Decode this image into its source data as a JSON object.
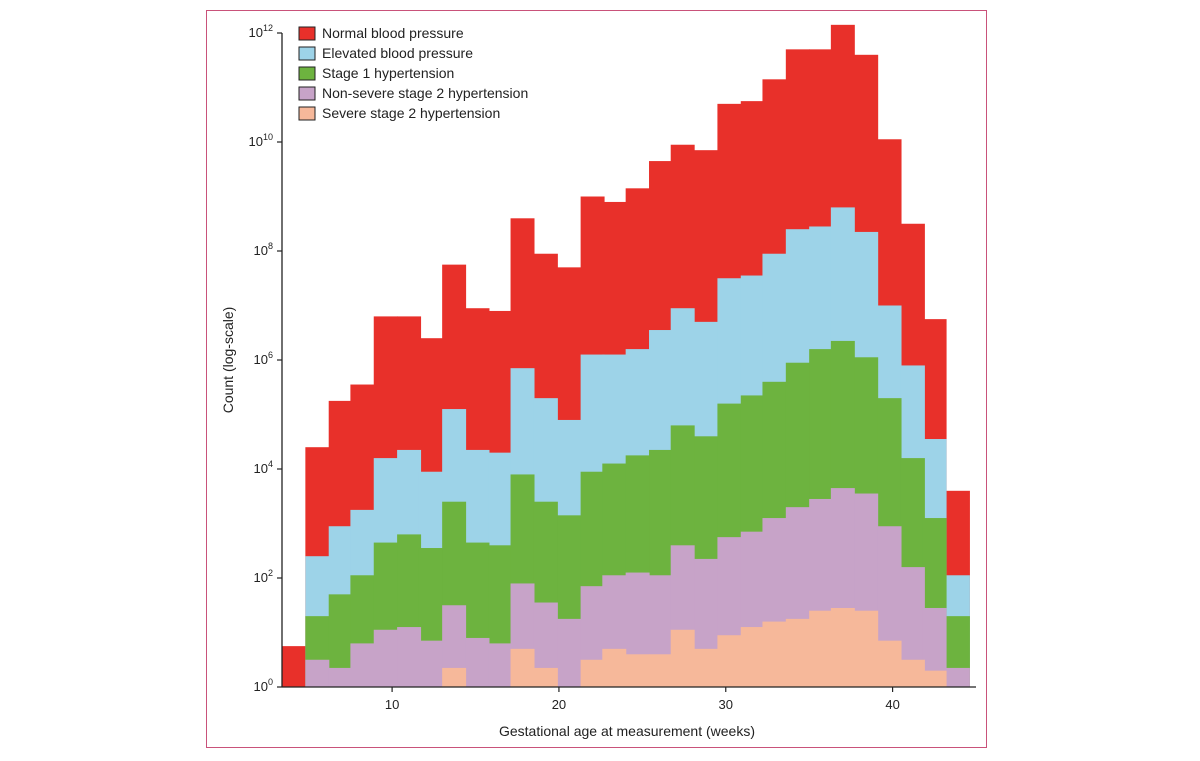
{
  "chart_data": {
    "type": "bar",
    "stacking": "overlaid-histogram",
    "xlabel": "Gestational age at measurement (weeks)",
    "ylabel": "Count (log-scale)",
    "y_scale": "log10",
    "ylim_exponent": [
      0,
      12
    ],
    "xlim": [
      3.4,
      45
    ],
    "x_ticks": [
      10,
      20,
      30,
      40
    ],
    "y_ticks": [
      {
        "base": "10",
        "exp": "0",
        "value": 0
      },
      {
        "base": "10",
        "exp": "2",
        "value": 2
      },
      {
        "base": "10",
        "exp": "4",
        "value": 4
      },
      {
        "base": "10",
        "exp": "6",
        "value": 6
      },
      {
        "base": "10",
        "exp": "8",
        "value": 8
      },
      {
        "base": "10",
        "exp": "10",
        "value": 10
      },
      {
        "base": "10",
        "exp": "12",
        "value": 12
      }
    ],
    "bin_start_weeks": [
      3.4,
      4.8,
      6.2,
      7.5,
      8.9,
      10.3,
      11.6,
      13.0,
      14.4,
      15.8,
      17.1,
      18.5,
      19.9,
      21.3,
      22.6,
      24.0,
      25.4,
      26.7,
      28.1,
      29.5,
      30.9,
      32.2,
      33.6,
      35.0,
      36.3,
      37.7,
      39.1,
      40.5,
      41.8,
      43.2
    ],
    "bin_width_weeks": 1.4,
    "legend_position": "top-left",
    "series": [
      {
        "name": "Normal blood pressure",
        "color": "#e8302a",
        "log10_values": [
          0.75,
          4.4,
          5.25,
          5.55,
          6.8,
          6.8,
          6.4,
          7.75,
          6.95,
          6.9,
          8.6,
          7.95,
          7.7,
          9.0,
          8.9,
          9.15,
          9.65,
          9.95,
          9.85,
          10.7,
          10.75,
          11.15,
          11.7,
          11.7,
          12.15,
          11.6,
          10.05,
          8.5,
          6.75,
          3.6
        ]
      },
      {
        "name": "Elevated blood pressure",
        "color": "#9dd3e8",
        "log10_values": [
          null,
          2.4,
          2.95,
          3.25,
          4.2,
          4.35,
          3.95,
          5.1,
          4.35,
          4.3,
          5.85,
          5.3,
          4.9,
          6.1,
          6.1,
          6.2,
          6.55,
          6.95,
          6.7,
          7.5,
          7.55,
          7.95,
          8.4,
          8.45,
          8.8,
          8.35,
          7.0,
          5.9,
          4.55,
          2.05
        ]
      },
      {
        "name": "Stage 1 hypertension",
        "color": "#6db33f",
        "log10_values": [
          null,
          1.3,
          1.7,
          2.05,
          2.65,
          2.8,
          2.55,
          3.4,
          2.65,
          2.6,
          3.9,
          3.4,
          3.15,
          3.95,
          4.1,
          4.25,
          4.35,
          4.8,
          4.6,
          5.2,
          5.35,
          5.6,
          5.95,
          6.2,
          6.35,
          6.05,
          5.3,
          4.2,
          3.1,
          1.3
        ]
      },
      {
        "name": "Non-severe stage 2 hypertension",
        "color": "#c7a3c8",
        "log10_values": [
          null,
          0.5,
          0.35,
          0.8,
          1.05,
          1.1,
          0.85,
          1.5,
          0.9,
          0.8,
          1.9,
          1.55,
          1.25,
          1.85,
          2.05,
          2.1,
          2.05,
          2.6,
          2.35,
          2.75,
          2.85,
          3.1,
          3.3,
          3.45,
          3.65,
          3.55,
          2.95,
          2.2,
          1.45,
          0.35
        ]
      },
      {
        "name": "Severe stage 2 hypertension",
        "color": "#f6b89a",
        "log10_values": [
          null,
          null,
          null,
          null,
          null,
          null,
          null,
          0.35,
          null,
          null,
          0.7,
          0.35,
          null,
          0.5,
          0.7,
          0.6,
          0.6,
          1.05,
          0.7,
          0.95,
          1.1,
          1.2,
          1.25,
          1.4,
          1.45,
          1.4,
          0.85,
          0.5,
          0.3,
          null
        ]
      }
    ]
  }
}
